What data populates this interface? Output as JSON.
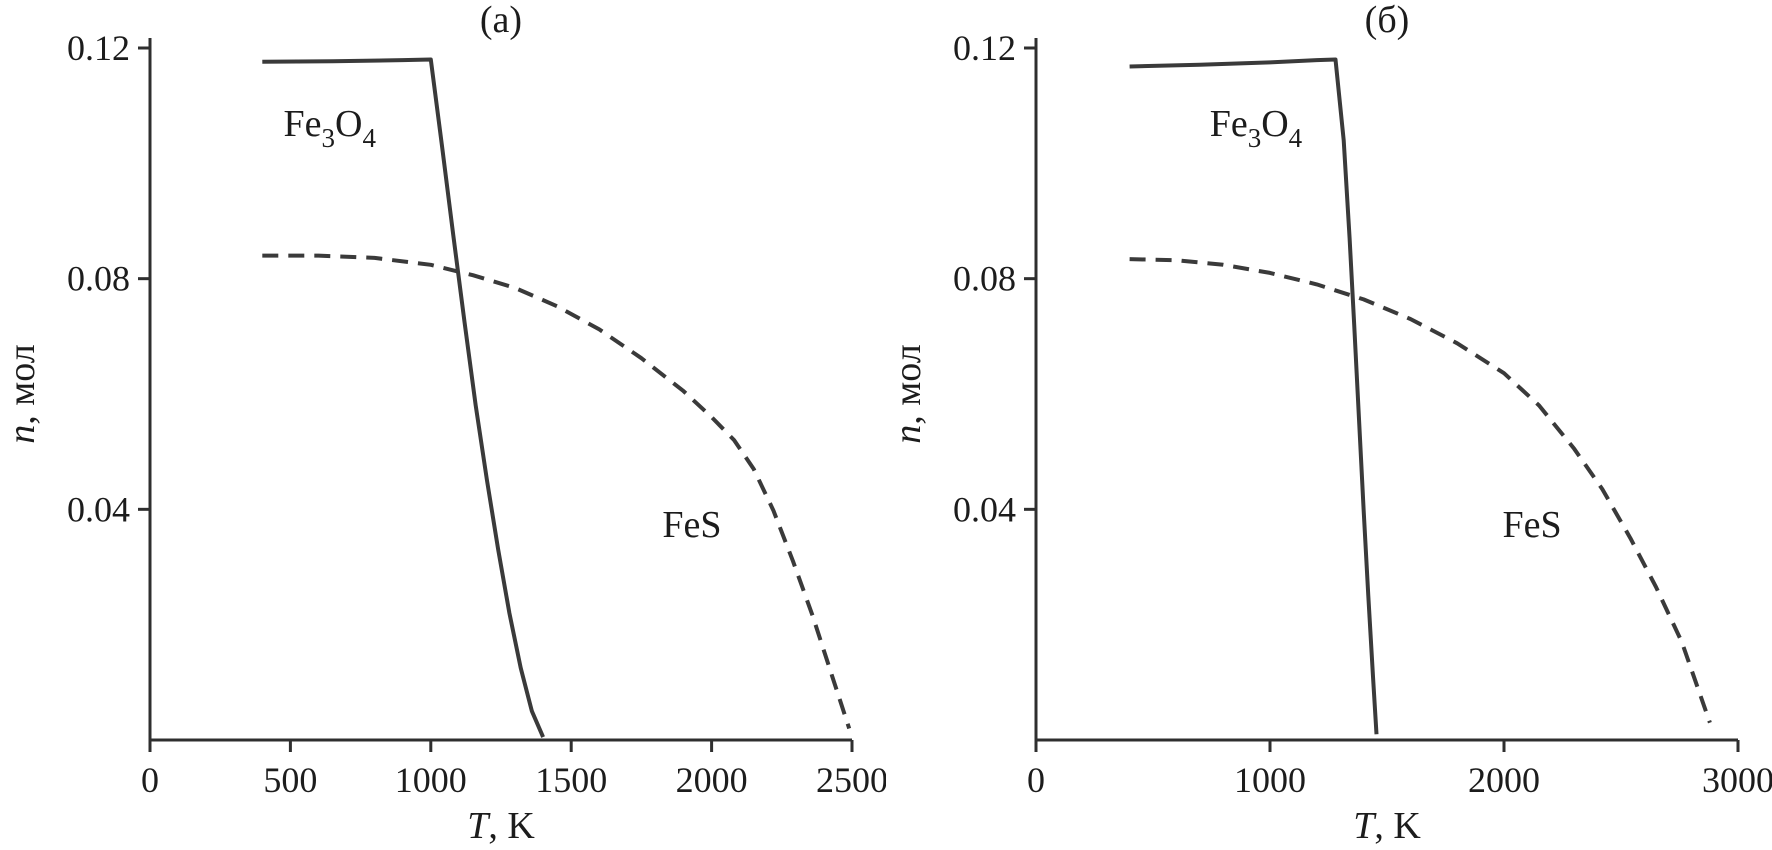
{
  "layout": {
    "background": "#ffffff",
    "axis_color": "#2f2f2f",
    "text_color": "#1c1c1c",
    "line_color": "#3a3a3a"
  },
  "chart_data": [
    {
      "type": "line",
      "panel": "a",
      "title": "(а)",
      "xlabel_parts": [
        {
          "text": "T",
          "italic": true
        },
        {
          "text": ", K",
          "italic": false
        }
      ],
      "ylabel_parts": [
        {
          "text": "n",
          "italic": true
        },
        {
          "text": ", мол",
          "italic": false
        }
      ],
      "xlim": [
        0,
        2500
      ],
      "ylim": [
        0,
        0.12
      ],
      "grid": false,
      "legend": "none",
      "xticks": [
        {
          "value": 0,
          "label": "0"
        },
        {
          "value": 500,
          "label": "500"
        },
        {
          "value": 1000,
          "label": "1000"
        },
        {
          "value": 1500,
          "label": "1500"
        },
        {
          "value": 2000,
          "label": "2000"
        },
        {
          "value": 2500,
          "label": "2500"
        }
      ],
      "yticks": [
        {
          "value": 0.04,
          "label": "0.04"
        },
        {
          "value": 0.08,
          "label": "0.08"
        },
        {
          "value": 0.12,
          "label": "0.12"
        }
      ],
      "series": [
        {
          "name": "Fe3O4",
          "line_style": "solid",
          "x": [
            400,
            650,
            900,
            1000,
            1040,
            1080,
            1120,
            1160,
            1200,
            1240,
            1280,
            1320,
            1360,
            1400
          ],
          "y": [
            0.1176,
            0.1177,
            0.1179,
            0.118,
            0.103,
            0.0875,
            0.0725,
            0.058,
            0.045,
            0.033,
            0.022,
            0.0125,
            0.005,
            0.0005
          ]
        },
        {
          "name": "FeS",
          "line_style": "dashed",
          "x": [
            400,
            600,
            800,
            1000,
            1150,
            1300,
            1450,
            1600,
            1750,
            1900,
            2000,
            2080,
            2150,
            2220,
            2290,
            2360,
            2430,
            2490
          ],
          "y": [
            0.084,
            0.084,
            0.0836,
            0.0824,
            0.0806,
            0.0784,
            0.0752,
            0.0712,
            0.0662,
            0.0605,
            0.056,
            0.052,
            0.047,
            0.0398,
            0.031,
            0.0215,
            0.011,
            0.002
          ]
        }
      ],
      "annotations": [
        {
          "text": "Fe3O4",
          "formula": true,
          "x": 640,
          "y": 0.107
        },
        {
          "text": "FeS",
          "formula": false,
          "x": 1930,
          "y": 0.0375
        }
      ]
    },
    {
      "type": "line",
      "panel": "б",
      "title": "(б)",
      "xlabel_parts": [
        {
          "text": "T",
          "italic": true
        },
        {
          "text": ", K",
          "italic": false
        }
      ],
      "ylabel_parts": [
        {
          "text": "n",
          "italic": true
        },
        {
          "text": ", мол",
          "italic": false
        }
      ],
      "xlim": [
        0,
        3000
      ],
      "ylim": [
        0,
        0.12
      ],
      "grid": false,
      "legend": "none",
      "xticks": [
        {
          "value": 0,
          "label": "0"
        },
        {
          "value": 1000,
          "label": "1000"
        },
        {
          "value": 2000,
          "label": "2000"
        },
        {
          "value": 3000,
          "label": "3000"
        }
      ],
      "yticks": [
        {
          "value": 0.04,
          "label": "0.04"
        },
        {
          "value": 0.08,
          "label": "0.08"
        },
        {
          "value": 0.12,
          "label": "0.12"
        }
      ],
      "series": [
        {
          "name": "Fe3O4",
          "line_style": "solid",
          "x": [
            400,
            700,
            1000,
            1200,
            1280,
            1315,
            1340,
            1360,
            1380,
            1400,
            1420,
            1440,
            1455
          ],
          "y": [
            0.1168,
            0.1171,
            0.1175,
            0.1179,
            0.118,
            0.104,
            0.087,
            0.072,
            0.056,
            0.04,
            0.025,
            0.011,
            0.001
          ]
        },
        {
          "name": "FeS",
          "line_style": "dashed",
          "x": [
            400,
            600,
            800,
            1000,
            1200,
            1400,
            1600,
            1800,
            2000,
            2150,
            2300,
            2420,
            2540,
            2650,
            2760,
            2880
          ],
          "y": [
            0.0834,
            0.0832,
            0.0824,
            0.081,
            0.079,
            0.0764,
            0.073,
            0.0688,
            0.0636,
            0.058,
            0.0505,
            0.0435,
            0.035,
            0.0265,
            0.017,
            0.003
          ]
        }
      ],
      "annotations": [
        {
          "text": "Fe3O4",
          "formula": true,
          "x": 940,
          "y": 0.107
        },
        {
          "text": "FeS",
          "formula": false,
          "x": 2120,
          "y": 0.0375
        }
      ]
    }
  ]
}
